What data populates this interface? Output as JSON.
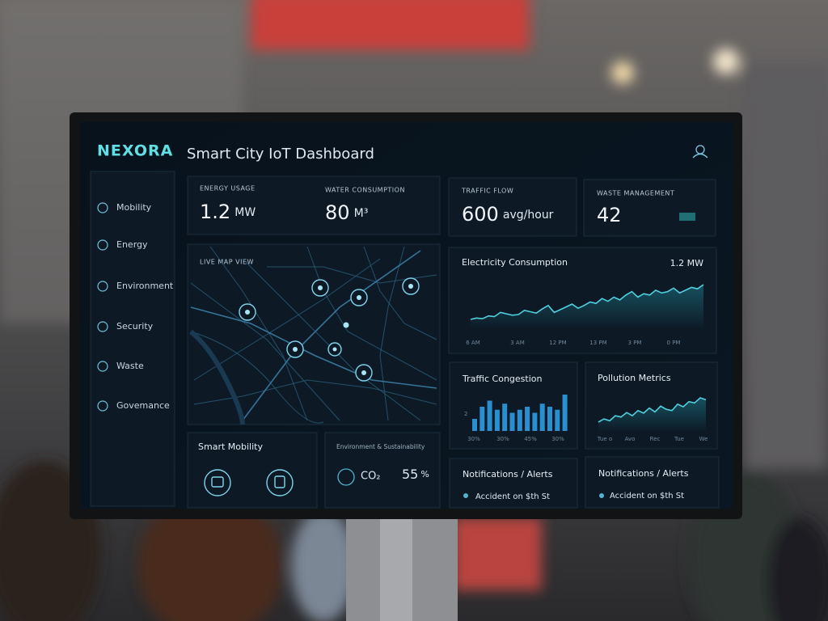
{
  "brand": "NEXORA",
  "title": "Smart City IoT Dashboard",
  "nav": [
    "Mobility",
    "Energy",
    "Environment",
    "Security",
    "Waste",
    "Govemance"
  ],
  "stats": [
    {
      "label": "ENERGY USAGE",
      "value": 1.2,
      "unit": "MW"
    },
    {
      "label": "WATER CONSUMPTION",
      "value": 80,
      "unit": "M³"
    },
    {
      "label": "TRAFFIC FLOW",
      "value": 600,
      "unit": "avg/hour"
    },
    {
      "label": "WASTE MANAGEMENT",
      "value": 42
    }
  ],
  "map": {
    "title": "LIVE MAP VIEW"
  },
  "electricity": {
    "title": "Electricity Consumption",
    "current": "1.2 MW",
    "x_labels": [
      "6 AM",
      "3 AM",
      "12 PM",
      "13 PM",
      "3 PM",
      "0 PM"
    ],
    "values": [
      20,
      22,
      21,
      25,
      24,
      30,
      28,
      26,
      27,
      33,
      31,
      29,
      35,
      40,
      30,
      34,
      38,
      42,
      36,
      40,
      45,
      43,
      50,
      46,
      52,
      48,
      55,
      60,
      52,
      57,
      55,
      62,
      58,
      60,
      65,
      58,
      62,
      66,
      64,
      70
    ]
  },
  "traffic": {
    "title": "Traffic Congestion",
    "y_label": "2",
    "x_labels": [
      "30%",
      "30%",
      "45%",
      "30%"
    ],
    "values": [
      4,
      8,
      10,
      7,
      9,
      6,
      7,
      8,
      6,
      9,
      8,
      7,
      12
    ]
  },
  "pollution": {
    "title": "Pollution Metrics",
    "x_labels": [
      "Tue o",
      "Avo",
      "Rec",
      "Tue",
      "We"
    ],
    "values": [
      20,
      25,
      22,
      30,
      28,
      35,
      30,
      38,
      34,
      42,
      36,
      45,
      40,
      38,
      48,
      44,
      52,
      50,
      58,
      55
    ]
  },
  "smart_mobility": {
    "title": "Smart Mobility"
  },
  "environment": {
    "title": "Environment & Sustainability",
    "gas": "CO₂",
    "percent": 55,
    "unit": "%"
  },
  "alerts": [
    {
      "title": "Notifications / Alerts",
      "item": "Accident on $th St"
    },
    {
      "title": "Notifications / Alerts",
      "item": "Accident on $th St"
    }
  ]
}
